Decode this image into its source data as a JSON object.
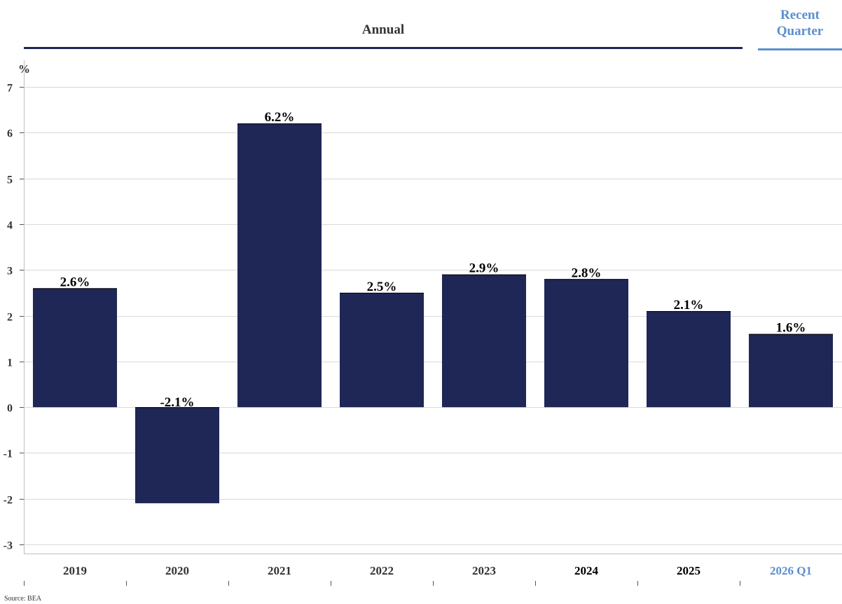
{
  "header": {
    "annual_label": "Annual",
    "recent_label_line1": "Recent",
    "recent_label_line2": "Quarter"
  },
  "source": "Source: BEA",
  "colors": {
    "bar": "#1f2757",
    "annual_rule": "#1f2757",
    "recent_accent": "#5b8fce",
    "grid": "#d9d9d9",
    "text": "#333333"
  },
  "chart_data": {
    "type": "bar",
    "categories": [
      "2019",
      "2020",
      "2021",
      "2022",
      "2023",
      "2024",
      "2025",
      "2026 Q1"
    ],
    "values": [
      2.6,
      -2.1,
      6.2,
      2.5,
      2.9,
      2.8,
      2.1,
      1.6
    ],
    "data_labels": [
      "2.6%",
      "-2.1%",
      "6.2%",
      "2.5%",
      "2.9%",
      "2.8%",
      "2.1%",
      "1.6%"
    ],
    "ylabel": "%",
    "ylim": [
      -3,
      7
    ],
    "yticks": [
      "-3",
      "-2",
      "-1",
      "0",
      "1",
      "2",
      "3",
      "4",
      "5",
      "6",
      "7"
    ],
    "grid": true,
    "highlight_last_category": true
  }
}
